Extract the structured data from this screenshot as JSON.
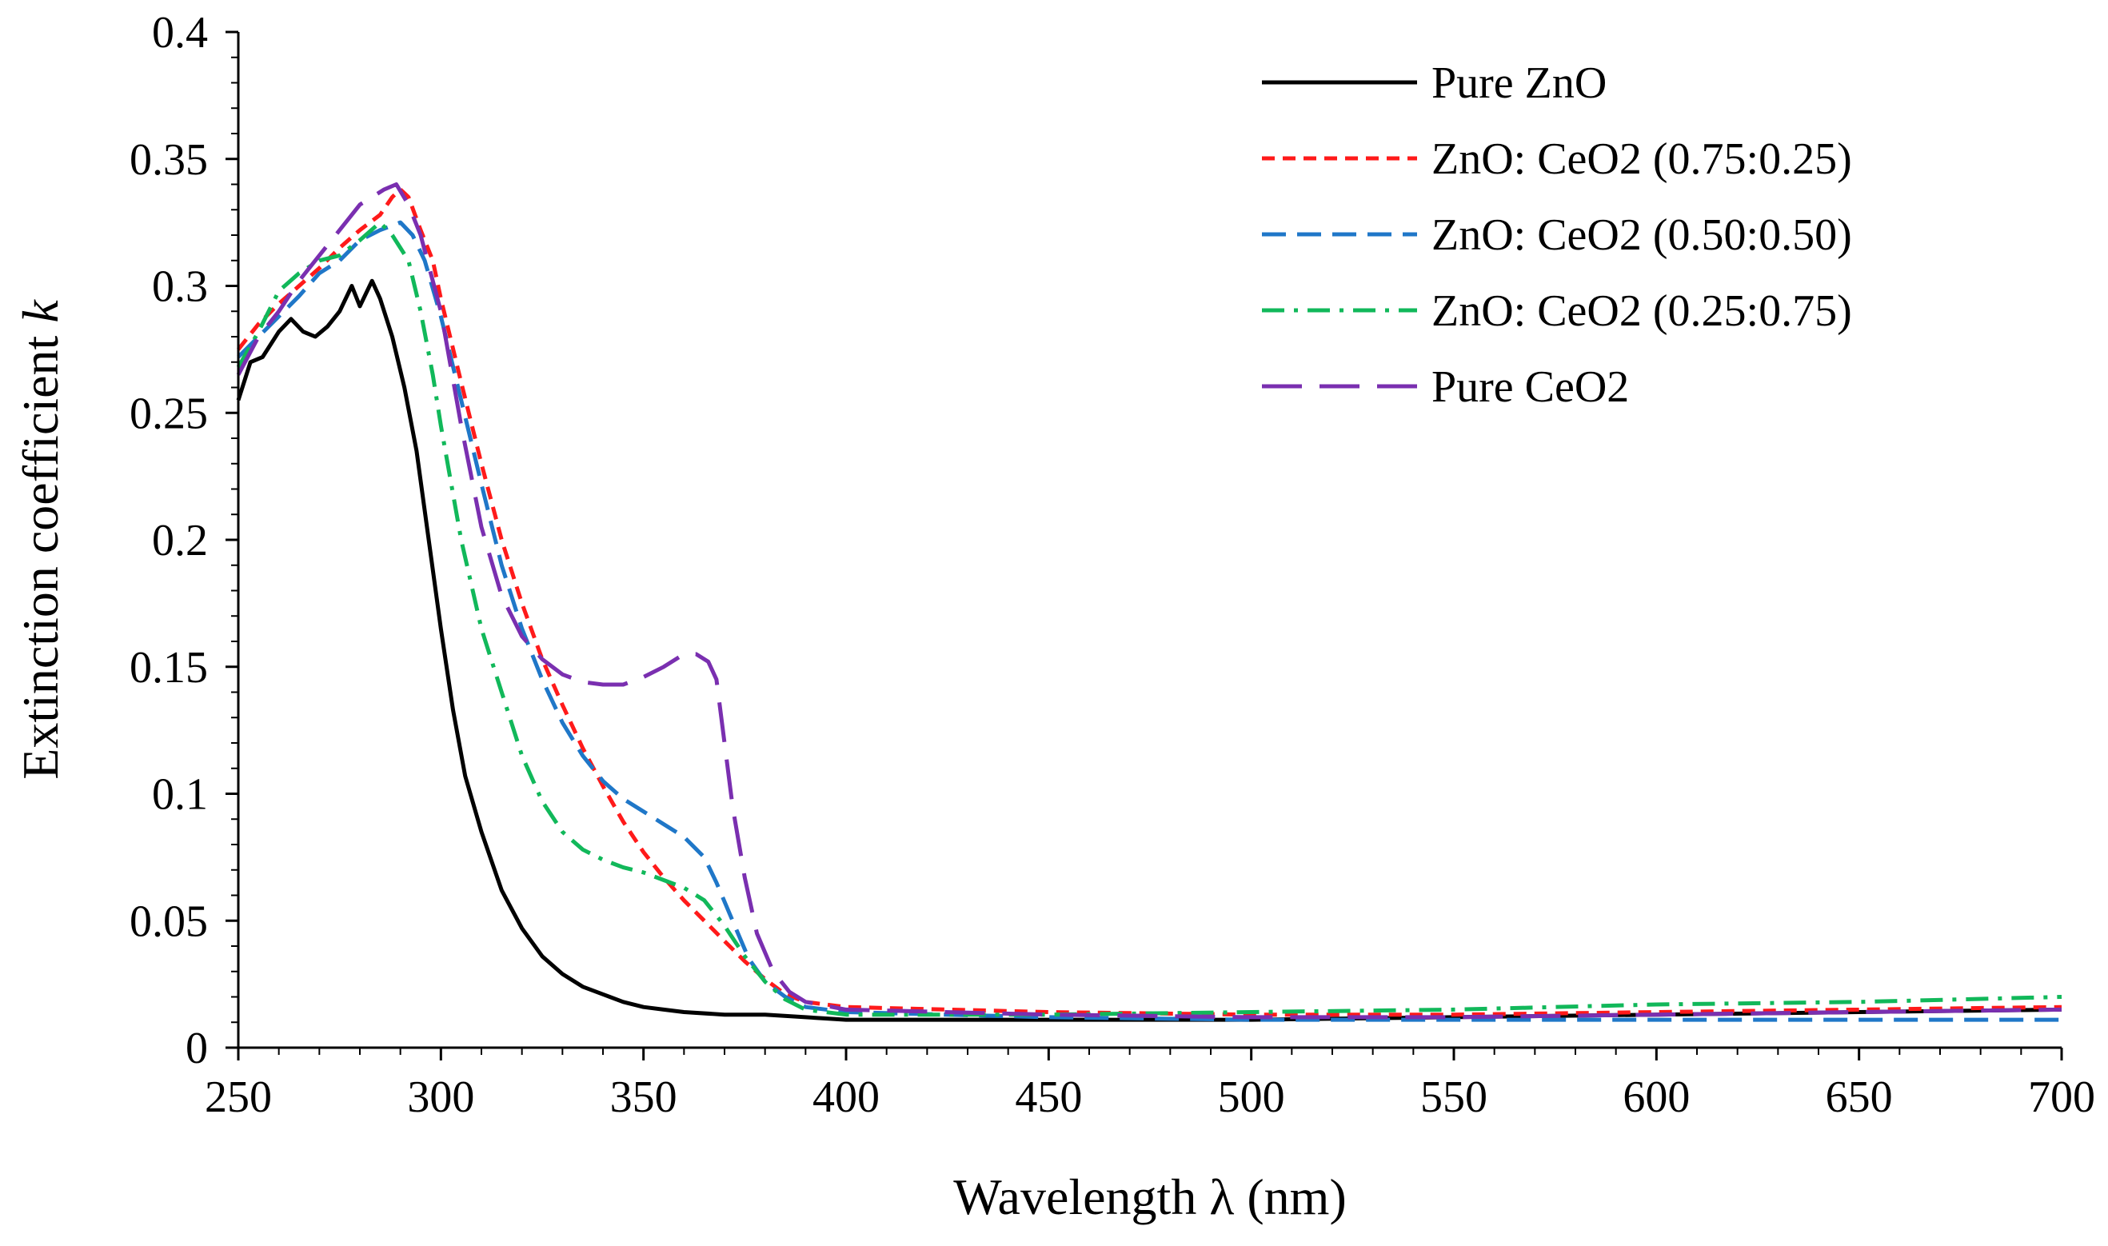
{
  "chart_data": {
    "type": "line",
    "title": "",
    "xlabel": "Wavelength λ (nm)",
    "ylabel_main": "Extinction coefficient ",
    "ylabel_var": "k",
    "xlim": [
      250,
      700
    ],
    "ylim": [
      0,
      0.4
    ],
    "xticks": [
      "250",
      "300",
      "350",
      "400",
      "450",
      "500",
      "550",
      "600",
      "650",
      "700"
    ],
    "yticks": [
      "0",
      "0.05",
      "0.1",
      "0.15",
      "0.2",
      "0.25",
      "0.3",
      "0.35",
      "0.4"
    ],
    "legend_position": "top-right",
    "series": [
      {
        "name": "Pure ZnO",
        "color": "#000000",
        "style": "solid",
        "x": [
          250,
          253,
          256,
          260,
          263,
          266,
          269,
          272,
          275,
          278,
          280,
          283,
          285,
          288,
          291,
          294,
          297,
          300,
          303,
          306,
          310,
          315,
          320,
          325,
          330,
          335,
          340,
          345,
          350,
          355,
          360,
          370,
          380,
          390,
          400,
          450,
          500,
          550,
          600,
          650,
          700
        ],
        "y": [
          0.255,
          0.27,
          0.272,
          0.282,
          0.287,
          0.282,
          0.28,
          0.284,
          0.29,
          0.3,
          0.292,
          0.302,
          0.295,
          0.28,
          0.26,
          0.235,
          0.2,
          0.165,
          0.133,
          0.107,
          0.085,
          0.062,
          0.047,
          0.036,
          0.029,
          0.024,
          0.021,
          0.018,
          0.016,
          0.015,
          0.014,
          0.013,
          0.013,
          0.012,
          0.011,
          0.011,
          0.011,
          0.012,
          0.013,
          0.014,
          0.015
        ]
      },
      {
        "name": "ZnO: CeO2 (0.75:0.25)",
        "color": "#ff1a1a",
        "style": "dash",
        "x": [
          250,
          255,
          260,
          265,
          270,
          275,
          280,
          285,
          288,
          290,
          292,
          295,
          298,
          300,
          305,
          310,
          315,
          320,
          325,
          330,
          335,
          340,
          345,
          350,
          355,
          360,
          365,
          370,
          375,
          380,
          385,
          390,
          400,
          450,
          500,
          550,
          600,
          650,
          700
        ],
        "y": [
          0.275,
          0.285,
          0.293,
          0.3,
          0.307,
          0.315,
          0.322,
          0.328,
          0.335,
          0.338,
          0.335,
          0.322,
          0.31,
          0.295,
          0.262,
          0.23,
          0.2,
          0.175,
          0.153,
          0.135,
          0.118,
          0.103,
          0.089,
          0.077,
          0.067,
          0.058,
          0.05,
          0.042,
          0.034,
          0.027,
          0.021,
          0.018,
          0.016,
          0.014,
          0.013,
          0.013,
          0.014,
          0.015,
          0.016
        ]
      },
      {
        "name": "ZnO: CeO2 (0.50:0.50)",
        "color": "#1f77c8",
        "style": "longdash",
        "x": [
          250,
          255,
          260,
          265,
          270,
          275,
          280,
          285,
          290,
          293,
          296,
          300,
          305,
          310,
          315,
          320,
          325,
          330,
          335,
          340,
          345,
          350,
          355,
          360,
          365,
          368,
          372,
          376,
          380,
          385,
          390,
          400,
          450,
          500,
          550,
          600,
          650,
          700
        ],
        "y": [
          0.272,
          0.28,
          0.288,
          0.296,
          0.305,
          0.31,
          0.318,
          0.322,
          0.325,
          0.32,
          0.31,
          0.288,
          0.255,
          0.222,
          0.19,
          0.165,
          0.145,
          0.128,
          0.115,
          0.105,
          0.098,
          0.093,
          0.088,
          0.083,
          0.075,
          0.065,
          0.05,
          0.035,
          0.026,
          0.02,
          0.016,
          0.014,
          0.012,
          0.011,
          0.011,
          0.011,
          0.011,
          0.011
        ]
      },
      {
        "name": "ZnO: CeO2 (0.25:0.75)",
        "color": "#11b85a",
        "style": "dashdot",
        "x": [
          250,
          255,
          260,
          265,
          270,
          275,
          280,
          285,
          288,
          292,
          295,
          298,
          300,
          305,
          310,
          315,
          320,
          325,
          330,
          335,
          340,
          345,
          350,
          355,
          360,
          365,
          370,
          375,
          380,
          385,
          390,
          400,
          450,
          500,
          550,
          600,
          650,
          700
        ],
        "y": [
          0.268,
          0.282,
          0.298,
          0.305,
          0.31,
          0.312,
          0.318,
          0.325,
          0.32,
          0.31,
          0.29,
          0.265,
          0.245,
          0.2,
          0.165,
          0.14,
          0.115,
          0.097,
          0.085,
          0.078,
          0.074,
          0.071,
          0.069,
          0.066,
          0.063,
          0.058,
          0.048,
          0.036,
          0.026,
          0.019,
          0.015,
          0.013,
          0.013,
          0.014,
          0.015,
          0.017,
          0.018,
          0.02
        ]
      },
      {
        "name": "Pure CeO2",
        "color": "#7a2fb0",
        "style": "longlongdash",
        "x": [
          250,
          255,
          260,
          265,
          270,
          275,
          280,
          283,
          286,
          289,
          292,
          295,
          300,
          305,
          310,
          315,
          320,
          325,
          330,
          335,
          340,
          345,
          350,
          355,
          360,
          363,
          366,
          368,
          370,
          372,
          375,
          378,
          382,
          386,
          390,
          400,
          450,
          500,
          550,
          600,
          650,
          700
        ],
        "y": [
          0.265,
          0.28,
          0.29,
          0.302,
          0.312,
          0.322,
          0.332,
          0.335,
          0.338,
          0.34,
          0.332,
          0.32,
          0.29,
          0.245,
          0.205,
          0.178,
          0.162,
          0.153,
          0.147,
          0.144,
          0.143,
          0.143,
          0.146,
          0.15,
          0.155,
          0.155,
          0.152,
          0.145,
          0.12,
          0.095,
          0.067,
          0.045,
          0.03,
          0.022,
          0.018,
          0.015,
          0.013,
          0.012,
          0.012,
          0.013,
          0.014,
          0.015
        ]
      }
    ]
  }
}
